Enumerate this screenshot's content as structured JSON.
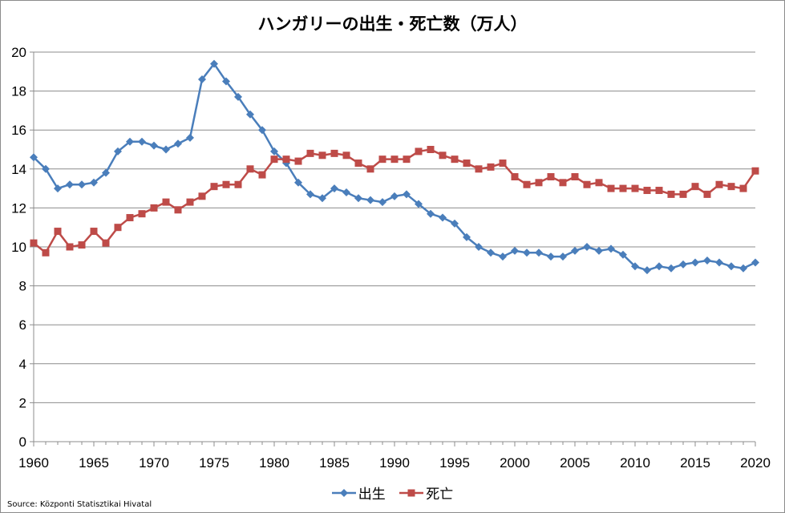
{
  "chart_data": {
    "type": "line",
    "title": "ハンガリーの出生・死亡数（万人）",
    "xlabel": "",
    "ylabel": "",
    "xlim": [
      1960,
      2020
    ],
    "ylim": [
      0,
      20
    ],
    "x_ticks": [
      1960,
      1965,
      1970,
      1975,
      1980,
      1985,
      1990,
      1995,
      2000,
      2005,
      2010,
      2015,
      2020
    ],
    "y_ticks": [
      0,
      2,
      4,
      6,
      8,
      10,
      12,
      14,
      16,
      18,
      20
    ],
    "grid": true,
    "legend_position": "bottom",
    "x": [
      1960,
      1961,
      1962,
      1963,
      1964,
      1965,
      1966,
      1967,
      1968,
      1969,
      1970,
      1971,
      1972,
      1973,
      1974,
      1975,
      1976,
      1977,
      1978,
      1979,
      1980,
      1981,
      1982,
      1983,
      1984,
      1985,
      1986,
      1987,
      1988,
      1989,
      1990,
      1991,
      1992,
      1993,
      1994,
      1995,
      1996,
      1997,
      1998,
      1999,
      2000,
      2001,
      2002,
      2003,
      2004,
      2005,
      2006,
      2007,
      2008,
      2009,
      2010,
      2011,
      2012,
      2013,
      2014,
      2015,
      2016,
      2017,
      2018,
      2019,
      2020
    ],
    "series": [
      {
        "name": "出生",
        "color": "#4a7ebb",
        "marker": "diamond",
        "values": [
          14.6,
          14.0,
          13.0,
          13.2,
          13.2,
          13.3,
          13.8,
          14.9,
          15.4,
          15.4,
          15.2,
          15.0,
          15.3,
          15.6,
          18.6,
          19.4,
          18.5,
          17.7,
          16.8,
          16.0,
          14.9,
          14.3,
          13.3,
          12.7,
          12.5,
          13.0,
          12.8,
          12.5,
          12.4,
          12.3,
          12.6,
          12.7,
          12.2,
          11.7,
          11.5,
          11.2,
          10.5,
          10.0,
          9.7,
          9.5,
          9.8,
          9.7,
          9.7,
          9.5,
          9.5,
          9.8,
          10.0,
          9.8,
          9.9,
          9.6,
          9.0,
          8.8,
          9.0,
          8.9,
          9.1,
          9.2,
          9.3,
          9.2,
          9.0,
          8.9,
          9.2
        ]
      },
      {
        "name": "死亡",
        "color": "#be4b48",
        "marker": "square",
        "values": [
          10.2,
          9.7,
          10.8,
          10.0,
          10.1,
          10.8,
          10.2,
          11.0,
          11.5,
          11.7,
          12.0,
          12.3,
          11.9,
          12.3,
          12.6,
          13.1,
          13.2,
          13.2,
          14.0,
          13.7,
          14.5,
          14.5,
          14.4,
          14.8,
          14.7,
          14.8,
          14.7,
          14.3,
          14.0,
          14.5,
          14.5,
          14.5,
          14.9,
          15.0,
          14.7,
          14.5,
          14.3,
          14.0,
          14.1,
          14.3,
          13.6,
          13.2,
          13.3,
          13.6,
          13.3,
          13.6,
          13.2,
          13.3,
          13.0,
          13.0,
          13.0,
          12.9,
          12.9,
          12.7,
          12.7,
          13.1,
          12.7,
          13.2,
          13.1,
          13.0,
          13.9
        ]
      }
    ]
  },
  "source_note": "Source: Központi Statisztikai Hivatal"
}
